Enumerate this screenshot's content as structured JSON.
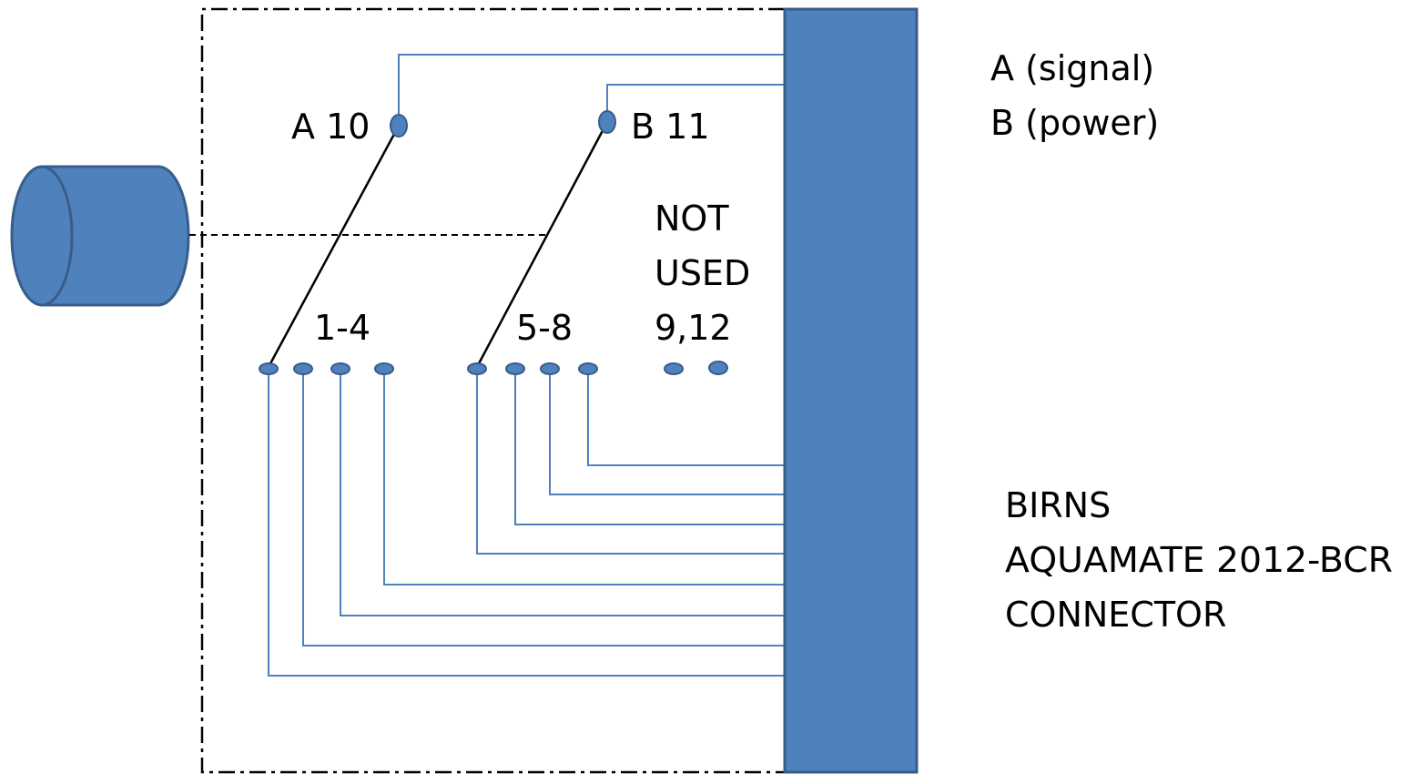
{
  "labels": {
    "pin_a": "A 10",
    "pin_b": "B 11",
    "group_1_4": "1-4",
    "group_5_8": "5-8",
    "not_used_line1": "NOT",
    "not_used_line2": "USED",
    "not_used_pins": "9,12"
  },
  "legend": {
    "a": "A (signal)",
    "b": "B (power)"
  },
  "connector": {
    "line1": "BIRNS",
    "line2": "AQUAMATE 2012-BCR",
    "line3": "CONNECTOR"
  },
  "colors": {
    "fill": "#4f81bd",
    "stroke": "#385d8a",
    "wire": "#4f81bd",
    "pin_link": "#000000",
    "enclosure": "#000000"
  }
}
